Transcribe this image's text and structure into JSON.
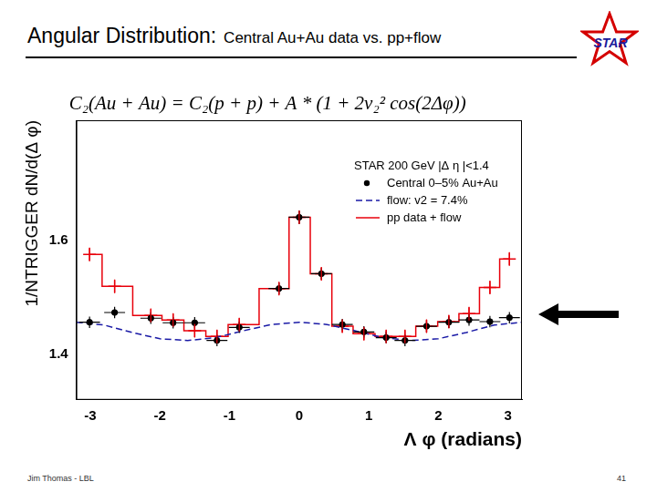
{
  "header": {
    "title": "Angular Distribution:",
    "subtitle": "Central Au+Au data vs. pp+flow",
    "logo": "STAR"
  },
  "footer": {
    "author": "Jim Thomas - LBL",
    "page": "41"
  },
  "chart_data": {
    "type": "scatter",
    "formula": "C₂(Au + Au) = C₂(p + p) + A * (1 + 2v₂² cos(2Δφ))",
    "legend_title": "STAR 200 GeV |Δ η |<1.4",
    "x_label": "Λ φ (radians)",
    "y_label": "1/NTRIGGER dN/d(Δ φ)",
    "xlim": [
      -3.2,
      3.2
    ],
    "xticks": [
      -3,
      -2,
      -1,
      0,
      1,
      2,
      3
    ],
    "ylim": [
      1.32,
      1.81
    ],
    "yticks": [
      1.4,
      1.6
    ],
    "grid": false,
    "legend": "upper right",
    "series": [
      {
        "name": "Central 0–5% Au+Au",
        "type": "scatter",
        "marker": "circle",
        "color": "#000000",
        "x": [
          -3.01,
          -2.65,
          -2.13,
          -1.81,
          -1.5,
          -1.18,
          -0.86,
          -0.29,
          0.0,
          0.32,
          0.62,
          0.93,
          1.25,
          1.52,
          1.83,
          2.15,
          2.44,
          2.74,
          3.02
        ],
        "values": [
          1.456,
          1.473,
          1.463,
          1.455,
          1.455,
          1.424,
          1.447,
          1.515,
          1.64,
          1.541,
          1.452,
          1.439,
          1.429,
          1.424,
          1.449,
          1.456,
          1.46,
          1.457,
          1.464
        ],
        "errors": [
          0.01,
          0.01,
          0.01,
          0.01,
          0.01,
          0.01,
          0.01,
          0.01,
          0.012,
          0.01,
          0.01,
          0.01,
          0.01,
          0.01,
          0.01,
          0.01,
          0.01,
          0.01,
          0.01
        ],
        "x_errors": [
          0.15,
          0.15,
          0.15,
          0.15,
          0.15,
          0.15,
          0.15,
          0.15,
          0.15,
          0.15,
          0.15,
          0.15,
          0.15,
          0.15,
          0.15,
          0.15,
          0.15,
          0.15,
          0.15
        ]
      },
      {
        "name": "flow: v2 = 7.4%",
        "type": "line",
        "line_style": "dashed",
        "marker": "none",
        "color": "#1a1aa6",
        "x": [
          -3.2,
          -2.8,
          -2.4,
          -2.0,
          -1.6,
          -1.2,
          -0.8,
          -0.4,
          0.0,
          0.4,
          0.8,
          1.2,
          1.6,
          2.0,
          2.4,
          2.8,
          3.2
        ],
        "values": [
          1.456,
          1.451,
          1.438,
          1.427,
          1.424,
          1.429,
          1.441,
          1.452,
          1.456,
          1.452,
          1.441,
          1.429,
          1.424,
          1.427,
          1.438,
          1.451,
          1.456
        ]
      },
      {
        "name": "pp data + flow",
        "type": "line",
        "line_style": "step",
        "marker": "cross",
        "color": "#e8000b",
        "x": [
          -3.01,
          -2.65,
          -2.13,
          -1.81,
          -1.5,
          -1.18,
          -0.86,
          -0.29,
          0.0,
          0.32,
          0.62,
          0.93,
          1.25,
          1.52,
          1.83,
          2.15,
          2.44,
          2.74,
          3.02
        ],
        "values": [
          1.575,
          1.519,
          1.468,
          1.46,
          1.441,
          1.431,
          1.452,
          1.515,
          1.64,
          1.541,
          1.449,
          1.436,
          1.431,
          1.431,
          1.449,
          1.457,
          1.471,
          1.517,
          1.567
        ],
        "errors": [
          0.012,
          0.012,
          0.012,
          0.012,
          0.012,
          0.012,
          0.012,
          0.012,
          0.012,
          0.012,
          0.012,
          0.012,
          0.012,
          0.012,
          0.012,
          0.012,
          0.012,
          0.012,
          0.012
        ]
      }
    ]
  }
}
